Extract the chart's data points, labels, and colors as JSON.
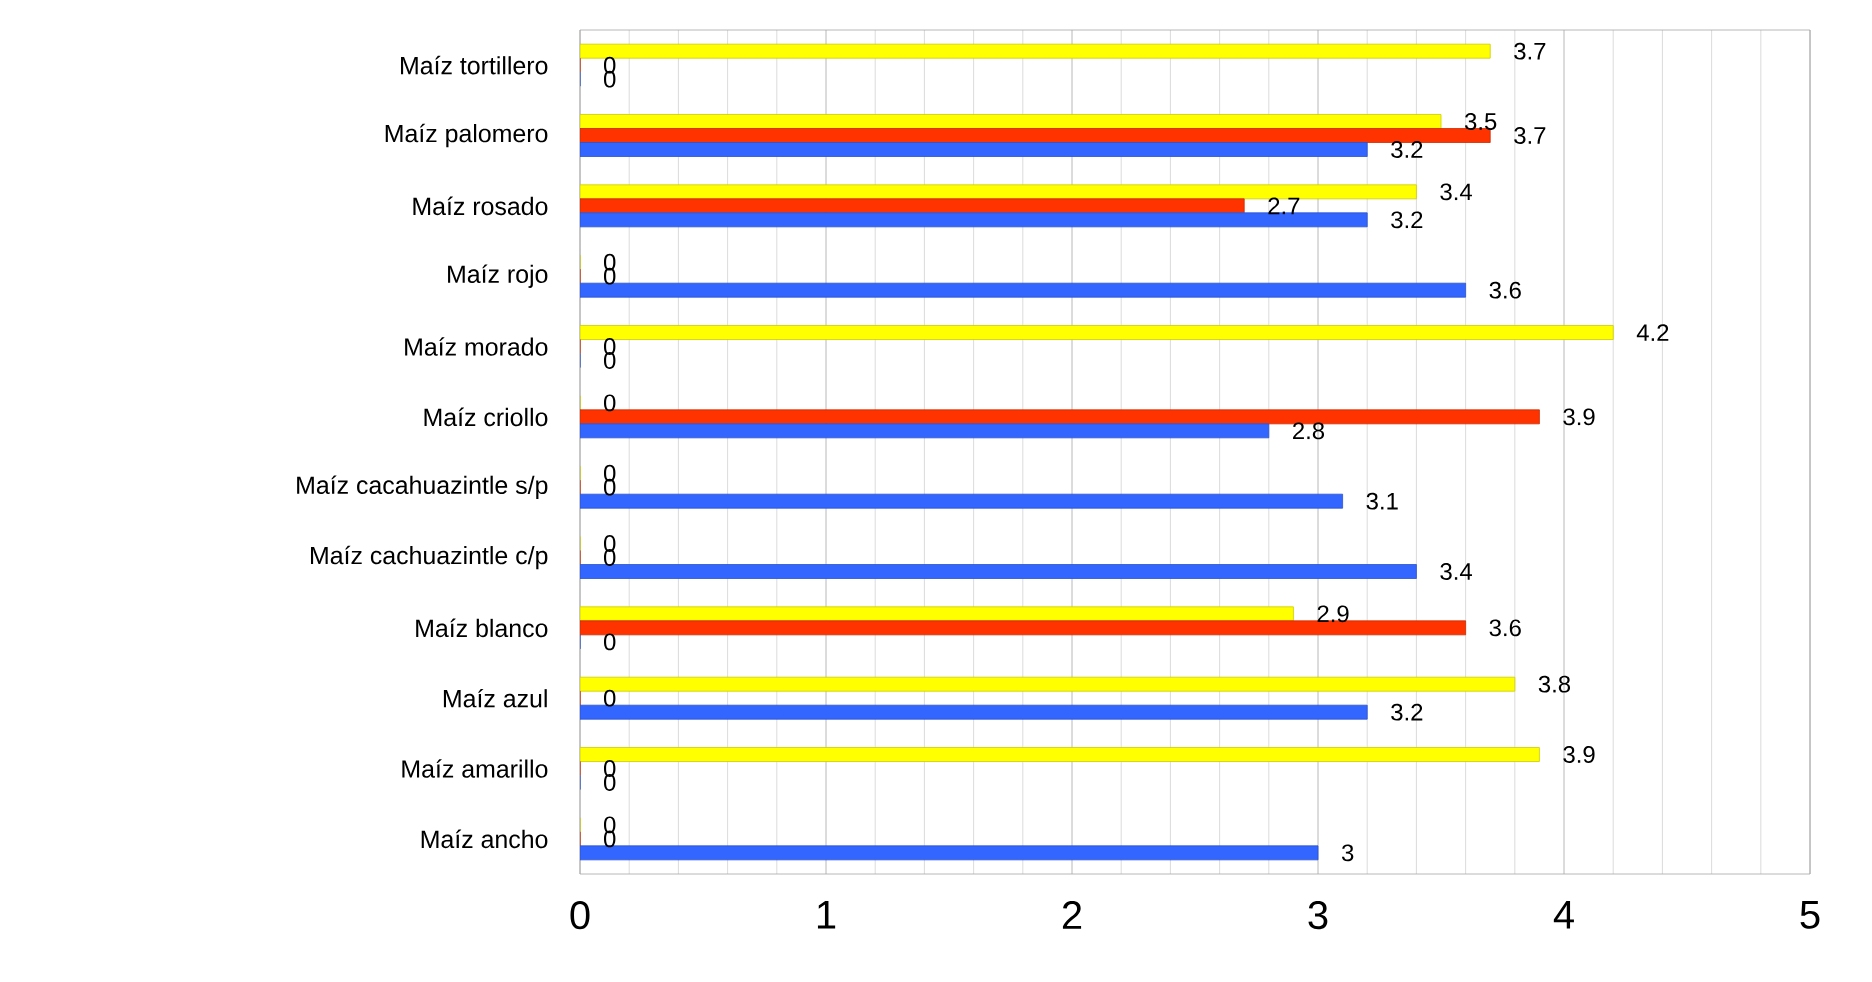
{
  "chart_data": {
    "type": "bar",
    "orientation": "horizontal",
    "categories": [
      "Maíz tortillero",
      "Maíz palomero",
      "Maíz rosado",
      "Maíz rojo",
      "Maíz morado",
      "Maíz criollo",
      "Maíz cacahuazintle s/p",
      "Maíz cachuazintle c/p",
      "Maíz blanco",
      "Maíz azul",
      "Maíz amarillo",
      "Maíz ancho"
    ],
    "series": [
      {
        "color": "#ffff00",
        "values": [
          3.7,
          3.5,
          3.4,
          0,
          4.2,
          0,
          0,
          0,
          2.9,
          3.8,
          3.9,
          0
        ]
      },
      {
        "color": "#ff3300",
        "values": [
          0,
          3.7,
          2.7,
          0,
          0,
          3.9,
          0,
          0,
          3.6,
          0,
          0,
          0
        ]
      },
      {
        "color": "#3366ff",
        "values": [
          0,
          3.2,
          3.2,
          3.6,
          0,
          2.8,
          3.1,
          3.4,
          0,
          3.2,
          0,
          3
        ]
      }
    ],
    "xlim": [
      0,
      5
    ],
    "xticks": [
      0,
      1,
      2,
      3,
      4,
      5
    ],
    "grid": "x",
    "data_labels": true
  }
}
